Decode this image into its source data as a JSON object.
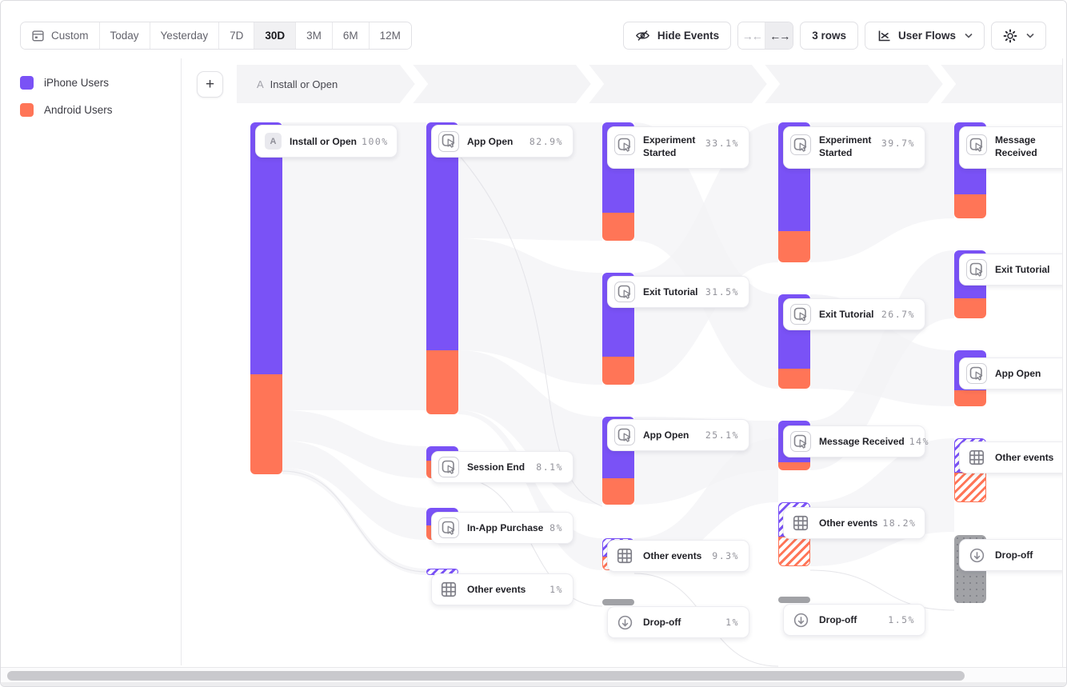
{
  "toolbar": {
    "date_ranges": [
      {
        "label": "Custom",
        "icon": "calendar-icon",
        "active": false
      },
      {
        "label": "Today",
        "active": false
      },
      {
        "label": "Yesterday",
        "active": false
      },
      {
        "label": "7D",
        "active": false
      },
      {
        "label": "30D",
        "active": true
      },
      {
        "label": "3M",
        "active": false
      },
      {
        "label": "6M",
        "active": false
      },
      {
        "label": "12M",
        "active": false
      }
    ],
    "hide_events": {
      "label": "Hide Events",
      "icon": "eye-off-icon"
    },
    "width_controls": {
      "collapse_glyph": "→←",
      "expand_glyph": "←→",
      "expand_active": true
    },
    "rows_button": {
      "label": "3 rows"
    },
    "view_selector": {
      "label": "User Flows",
      "icon": "flow-chart-icon"
    },
    "settings": {
      "icon": "gear-icon"
    }
  },
  "legend": {
    "items": [
      {
        "label": "iPhone Users",
        "color": "#7A52F6"
      },
      {
        "label": "Android Users",
        "color": "#FF7557"
      }
    ]
  },
  "flow": {
    "add_button_label": "+",
    "step_header": {
      "badge": "A",
      "label": "Install or Open"
    },
    "columns": [
      {
        "nodes": [
          {
            "label": "Install or Open",
            "percent": "100%",
            "badge": "A",
            "icon": "a-badge-icon",
            "type": "start"
          }
        ]
      },
      {
        "nodes": [
          {
            "label": "App Open",
            "percent": "82.9%",
            "icon": "click-event-icon",
            "type": "event"
          },
          {
            "label": "Session End",
            "percent": "8.1%",
            "icon": "click-event-icon",
            "type": "event"
          },
          {
            "label": "In-App Purchase",
            "percent": "8%",
            "icon": "click-event-icon",
            "type": "event"
          },
          {
            "label": "Other events",
            "percent": "1%",
            "icon": "grid-icon",
            "type": "other"
          }
        ]
      },
      {
        "nodes": [
          {
            "label": "Experiment Started",
            "percent": "33.1%",
            "icon": "click-event-icon",
            "type": "event"
          },
          {
            "label": "Exit Tutorial",
            "percent": "31.5%",
            "icon": "click-event-icon",
            "type": "event"
          },
          {
            "label": "App Open",
            "percent": "25.1%",
            "icon": "click-event-icon",
            "type": "event"
          },
          {
            "label": "Other events",
            "percent": "9.3%",
            "icon": "grid-icon",
            "type": "other"
          },
          {
            "label": "Drop-off",
            "percent": "1%",
            "icon": "drop-off-icon",
            "type": "dropoff"
          }
        ]
      },
      {
        "nodes": [
          {
            "label": "Experiment Started",
            "percent": "39.7%",
            "icon": "click-event-icon",
            "type": "event"
          },
          {
            "label": "Exit Tutorial",
            "percent": "26.7%",
            "icon": "click-event-icon",
            "type": "event"
          },
          {
            "label": "Message Received",
            "percent": "14%",
            "icon": "click-event-icon",
            "type": "event"
          },
          {
            "label": "Other events",
            "percent": "18.2%",
            "icon": "grid-icon",
            "type": "other"
          },
          {
            "label": "Drop-off",
            "percent": "1.5%",
            "icon": "drop-off-icon",
            "type": "dropoff"
          }
        ]
      },
      {
        "nodes": [
          {
            "label": "Message Received",
            "icon": "click-event-icon",
            "type": "event"
          },
          {
            "label": "Exit Tutorial",
            "icon": "click-event-icon",
            "type": "event"
          },
          {
            "label": "App Open",
            "icon": "click-event-icon",
            "type": "event"
          },
          {
            "label": "Other events",
            "icon": "grid-icon",
            "type": "other"
          },
          {
            "label": "Drop-off",
            "icon": "drop-off-icon",
            "type": "dropoff"
          }
        ]
      }
    ]
  },
  "colors": {
    "iphone": "#7A52F6",
    "android": "#FF7557",
    "dropoff": "#A1A2A6",
    "band": "#F4F4F6"
  }
}
